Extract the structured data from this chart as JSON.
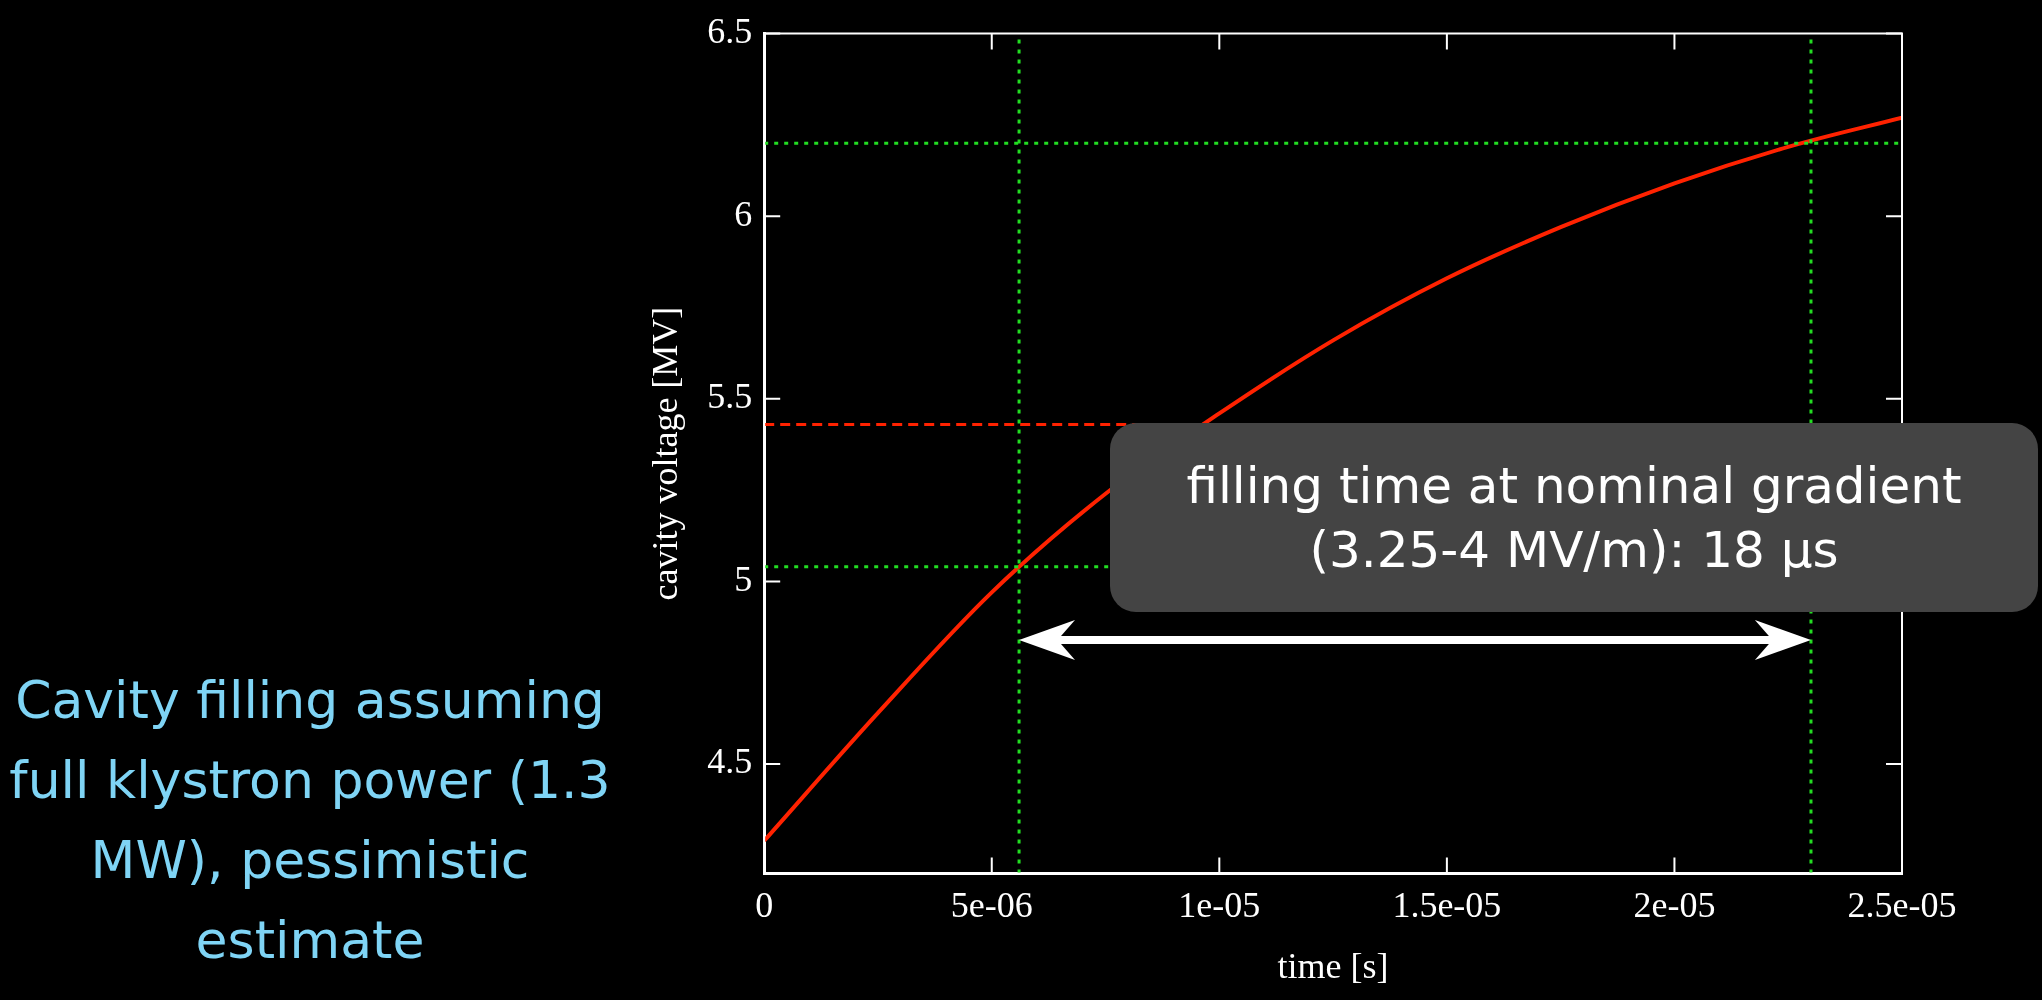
{
  "chart_data": {
    "type": "line",
    "xlabel": "time [s]",
    "ylabel": "cavity voltage [MV]",
    "x": [
      0,
      2.5e-06,
      5e-06,
      7.5e-06,
      1e-05,
      1.25e-05,
      1.5e-05,
      1.75e-05,
      2e-05,
      2.25e-05,
      2.5e-05
    ],
    "series": [
      {
        "color": "#ff2200",
        "values": [
          4.29,
          4.64,
          4.97,
          5.24,
          5.46,
          5.66,
          5.83,
          5.97,
          6.09,
          6.19,
          6.27
        ]
      }
    ],
    "xlim": [
      0,
      2.5e-05
    ],
    "xticks": [
      0,
      {
        "value": 5e-06,
        "label": "5e-06"
      },
      {
        "value": 1e-05,
        "label": "1e-05"
      },
      {
        "value": 1.5e-05,
        "label": "1.5e-05"
      },
      {
        "value": 2e-05,
        "label": "2e-05"
      },
      {
        "value": 2.5e-05,
        "label": "2.5e-05"
      }
    ],
    "ylim": [
      4.2,
      6.5
    ],
    "yticks": [
      4.5,
      5,
      5.5,
      6,
      6.5
    ],
    "ref_lines": [
      {
        "axis": "y",
        "value": 5.43,
        "color": "#ff2200",
        "line_style": "dashed"
      },
      {
        "axis": "y",
        "value": 6.2,
        "color": "#22dd22",
        "line_style": "dotted"
      },
      {
        "axis": "y",
        "value": 5.04,
        "color": "#22dd22",
        "line_style": "dotted"
      },
      {
        "axis": "x",
        "value": 5.6e-06,
        "color": "#22dd22",
        "line_style": "dotted"
      },
      {
        "axis": "x",
        "value": 2.3e-05,
        "color": "#22dd22",
        "line_style": "dotted"
      }
    ],
    "annotations": [
      "filling time at nominal gradient (3.25-4 MV/m): 18 μs",
      "Cavity filling assuming full klystron power (1.3 MW), pessimistic estimate"
    ],
    "grid": false,
    "legend": false,
    "marker": "none",
    "line_style": "solid"
  }
}
